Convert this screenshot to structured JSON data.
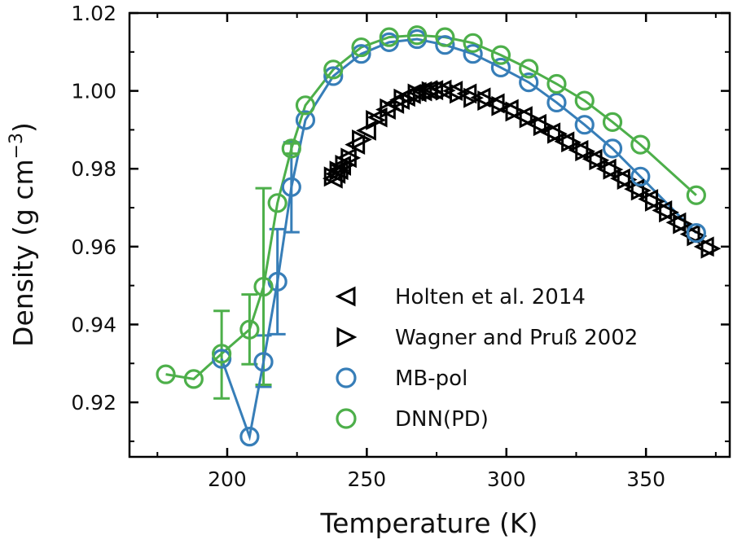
{
  "chart_data": {
    "type": "scatter",
    "xlabel": "Temperature (K)",
    "ylabel": "Density (g cm",
    "ylabel_sup": "−3",
    "ylabel_close": ")",
    "xlim": [
      165,
      380
    ],
    "ylim": [
      0.906,
      1.02
    ],
    "xticks": [
      "200",
      "250",
      "300",
      "350"
    ],
    "yticks": [
      "0.92",
      "0.94",
      "0.96",
      "0.98",
      "1.00",
      "1.02"
    ],
    "legend_position": "lower-right",
    "series": [
      {
        "name": "Holten et al. 2014",
        "marker": "triangle-left",
        "color": "#000000",
        "x": [
          238,
          239,
          240,
          241,
          243,
          246,
          250,
          254,
          257,
          260,
          262,
          264,
          266,
          268,
          270,
          272,
          274,
          277,
          281,
          286,
          291,
          296,
          301,
          306,
          311,
          316,
          321,
          326,
          331,
          336,
          341,
          346,
          351,
          356,
          361,
          366,
          371
        ],
        "y": [
          0.9775,
          0.9787,
          0.9797,
          0.9808,
          0.9828,
          0.9862,
          0.9898,
          0.9932,
          0.9952,
          0.9967,
          0.9977,
          0.9985,
          0.9992,
          0.9997,
          0.9999,
          1.0002,
          1.0002,
          1.0003,
          1.0,
          0.9993,
          0.9983,
          0.9968,
          0.9953,
          0.9935,
          0.9915,
          0.9893,
          0.987,
          0.9848,
          0.9825,
          0.98,
          0.9775,
          0.9748,
          0.9722,
          0.9693,
          0.9662,
          0.9632,
          0.96
        ]
      },
      {
        "name": "Wagner and Pruß 2002",
        "marker": "triangle-right",
        "color": "#000000",
        "x": [
          238,
          240,
          242,
          244,
          248,
          253,
          258,
          263,
          268,
          273,
          278,
          283,
          288,
          293,
          298,
          303,
          308,
          313,
          318,
          323,
          328,
          333,
          338,
          343,
          348,
          353,
          358,
          363,
          368,
          373
        ],
        "y": [
          0.978,
          0.9795,
          0.981,
          0.9828,
          0.9875,
          0.9925,
          0.9955,
          0.998,
          0.9993,
          0.9999,
          1.0001,
          0.9993,
          0.9982,
          0.9975,
          0.9961,
          0.9947,
          0.993,
          0.991,
          0.989,
          0.9868,
          0.9845,
          0.9822,
          0.9798,
          0.9772,
          0.9744,
          0.9716,
          0.9688,
          0.9658,
          0.9627,
          0.9595
        ]
      },
      {
        "name": "MB-pol",
        "marker": "circle",
        "color": "#377eb8",
        "x": [
          198,
          208,
          213,
          218,
          223,
          228,
          238,
          248,
          258,
          268,
          278,
          288,
          298,
          308,
          318,
          328,
          338,
          348,
          368
        ],
        "y": [
          0.9312,
          0.9112,
          0.9304,
          0.951,
          0.9753,
          0.9925,
          1.0038,
          1.0095,
          1.0125,
          1.0133,
          1.0118,
          1.0095,
          1.006,
          1.0022,
          0.997,
          0.9913,
          0.9852,
          0.978,
          0.9635
        ]
      },
      {
        "name": "DNN(PD)",
        "marker": "circle",
        "color": "#4daf4a",
        "x": [
          178,
          188,
          198,
          208,
          213,
          218,
          223,
          228,
          238,
          248,
          258,
          268,
          278,
          288,
          298,
          308,
          318,
          328,
          338,
          348,
          368
        ],
        "y": [
          0.9272,
          0.926,
          0.9325,
          0.9387,
          0.9497,
          0.9712,
          0.9852,
          0.9963,
          1.0055,
          1.0112,
          1.0138,
          1.0143,
          1.0138,
          1.0123,
          1.0092,
          1.0057,
          1.0018,
          0.9975,
          0.992,
          0.9862,
          0.9732
        ]
      }
    ],
    "error_bars": [
      {
        "series": "MB-pol",
        "x": 213,
        "y": 0.9304,
        "lower": 0.924,
        "upper": 0.9372
      },
      {
        "series": "MB-pol",
        "x": 218,
        "y": 0.951,
        "lower": 0.9375,
        "upper": 0.9645
      },
      {
        "series": "MB-pol",
        "x": 223,
        "y": 0.9753,
        "lower": 0.9637,
        "upper": 0.9868
      },
      {
        "series": "DNN(PD)",
        "x": 198,
        "y": 0.9325,
        "lower": 0.921,
        "upper": 0.9435
      },
      {
        "series": "DNN(PD)",
        "x": 208,
        "y": 0.9387,
        "lower": 0.9298,
        "upper": 0.9477
      },
      {
        "series": "DNN(PD)",
        "x": 213,
        "y": 0.9497,
        "lower": 0.9245,
        "upper": 0.975
      },
      {
        "series": "DNN(PD)",
        "x": 223,
        "y": 0.9852,
        "lower": 0.9839,
        "upper": 0.9865
      }
    ]
  }
}
